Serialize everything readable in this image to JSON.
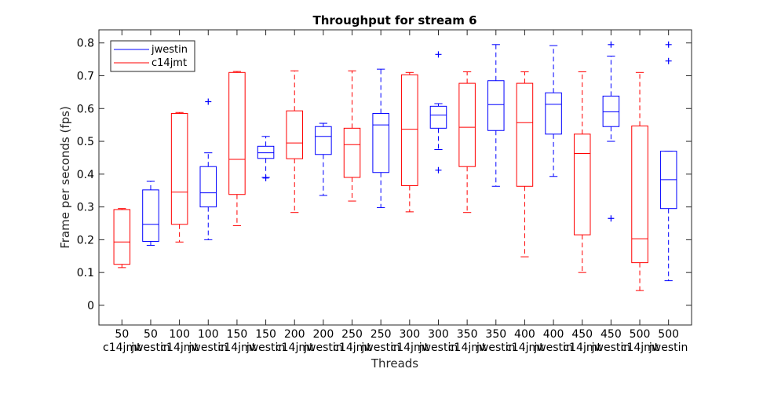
{
  "chart_data": {
    "type": "boxplot",
    "title": "Throughput for stream 6",
    "xlabel": "Threads",
    "ylabel": "Frame per seconds (fps)",
    "ylim": [
      -0.06,
      0.84
    ],
    "yticks": [
      0,
      0.1,
      0.2,
      0.3,
      0.4,
      0.5,
      0.6,
      0.7,
      0.8
    ],
    "grid": false,
    "legend": {
      "position": "top-left",
      "entries": [
        {
          "name": "jwestin",
          "color": "#0000ff"
        },
        {
          "name": "c14jmt",
          "color": "#ff0000"
        }
      ]
    },
    "series_colors": {
      "jwestin": "#0000ff",
      "c14jmt": "#ff0000"
    },
    "boxes": [
      {
        "threads": "50",
        "series": "c14jmt",
        "whisker_low": 0.115,
        "q1": 0.125,
        "median": 0.193,
        "q3": 0.292,
        "whisker_high": 0.295,
        "outliers": []
      },
      {
        "threads": "50",
        "series": "jwestin",
        "whisker_low": 0.183,
        "q1": 0.195,
        "median": 0.247,
        "q3": 0.352,
        "whisker_high": 0.378,
        "outliers": []
      },
      {
        "threads": "100",
        "series": "c14jmt",
        "whisker_low": 0.193,
        "q1": 0.247,
        "median": 0.345,
        "q3": 0.585,
        "whisker_high": 0.588,
        "outliers": []
      },
      {
        "threads": "100",
        "series": "jwestin",
        "whisker_low": 0.2,
        "q1": 0.3,
        "median": 0.343,
        "q3": 0.423,
        "whisker_high": 0.465,
        "outliers": [
          0.621
        ]
      },
      {
        "threads": "150",
        "series": "c14jmt",
        "whisker_low": 0.243,
        "q1": 0.338,
        "median": 0.445,
        "q3": 0.71,
        "whisker_high": 0.713,
        "outliers": []
      },
      {
        "threads": "150",
        "series": "jwestin",
        "whisker_low": 0.39,
        "q1": 0.448,
        "median": 0.465,
        "q3": 0.485,
        "whisker_high": 0.515,
        "outliers": [
          0.388
        ]
      },
      {
        "threads": "200",
        "series": "c14jmt",
        "whisker_low": 0.283,
        "q1": 0.447,
        "median": 0.495,
        "q3": 0.593,
        "whisker_high": 0.715,
        "outliers": []
      },
      {
        "threads": "200",
        "series": "jwestin",
        "whisker_low": 0.335,
        "q1": 0.46,
        "median": 0.515,
        "q3": 0.545,
        "whisker_high": 0.555,
        "outliers": []
      },
      {
        "threads": "250",
        "series": "c14jmt",
        "whisker_low": 0.318,
        "q1": 0.39,
        "median": 0.49,
        "q3": 0.54,
        "whisker_high": 0.715,
        "outliers": []
      },
      {
        "threads": "250",
        "series": "jwestin",
        "whisker_low": 0.298,
        "q1": 0.405,
        "median": 0.55,
        "q3": 0.585,
        "whisker_high": 0.72,
        "outliers": []
      },
      {
        "threads": "300",
        "series": "c14jmt",
        "whisker_low": 0.285,
        "q1": 0.365,
        "median": 0.537,
        "q3": 0.703,
        "whisker_high": 0.71,
        "outliers": []
      },
      {
        "threads": "300",
        "series": "jwestin",
        "whisker_low": 0.475,
        "q1": 0.54,
        "median": 0.58,
        "q3": 0.607,
        "whisker_high": 0.615,
        "outliers": [
          0.412,
          0.765
        ]
      },
      {
        "threads": "350",
        "series": "c14jmt",
        "whisker_low": 0.283,
        "q1": 0.423,
        "median": 0.543,
        "q3": 0.677,
        "whisker_high": 0.712,
        "outliers": []
      },
      {
        "threads": "350",
        "series": "jwestin",
        "whisker_low": 0.363,
        "q1": 0.533,
        "median": 0.612,
        "q3": 0.685,
        "whisker_high": 0.795,
        "outliers": []
      },
      {
        "threads": "400",
        "series": "c14jmt",
        "whisker_low": 0.148,
        "q1": 0.363,
        "median": 0.557,
        "q3": 0.677,
        "whisker_high": 0.712,
        "outliers": []
      },
      {
        "threads": "400",
        "series": "jwestin",
        "whisker_low": 0.393,
        "q1": 0.522,
        "median": 0.613,
        "q3": 0.648,
        "whisker_high": 0.792,
        "outliers": []
      },
      {
        "threads": "450",
        "series": "c14jmt",
        "whisker_low": 0.1,
        "q1": 0.215,
        "median": 0.463,
        "q3": 0.522,
        "whisker_high": 0.712,
        "outliers": []
      },
      {
        "threads": "450",
        "series": "jwestin",
        "whisker_low": 0.5,
        "q1": 0.545,
        "median": 0.59,
        "q3": 0.638,
        "whisker_high": 0.76,
        "outliers": [
          0.265,
          0.795
        ]
      },
      {
        "threads": "500",
        "series": "c14jmt",
        "whisker_low": 0.045,
        "q1": 0.13,
        "median": 0.203,
        "q3": 0.547,
        "whisker_high": 0.71,
        "outliers": []
      },
      {
        "threads": "500",
        "series": "jwestin",
        "whisker_low": 0.075,
        "q1": 0.295,
        "median": 0.383,
        "q3": 0.47,
        "whisker_high": 0.47,
        "outliers": [
          0.745,
          0.795
        ]
      }
    ]
  }
}
